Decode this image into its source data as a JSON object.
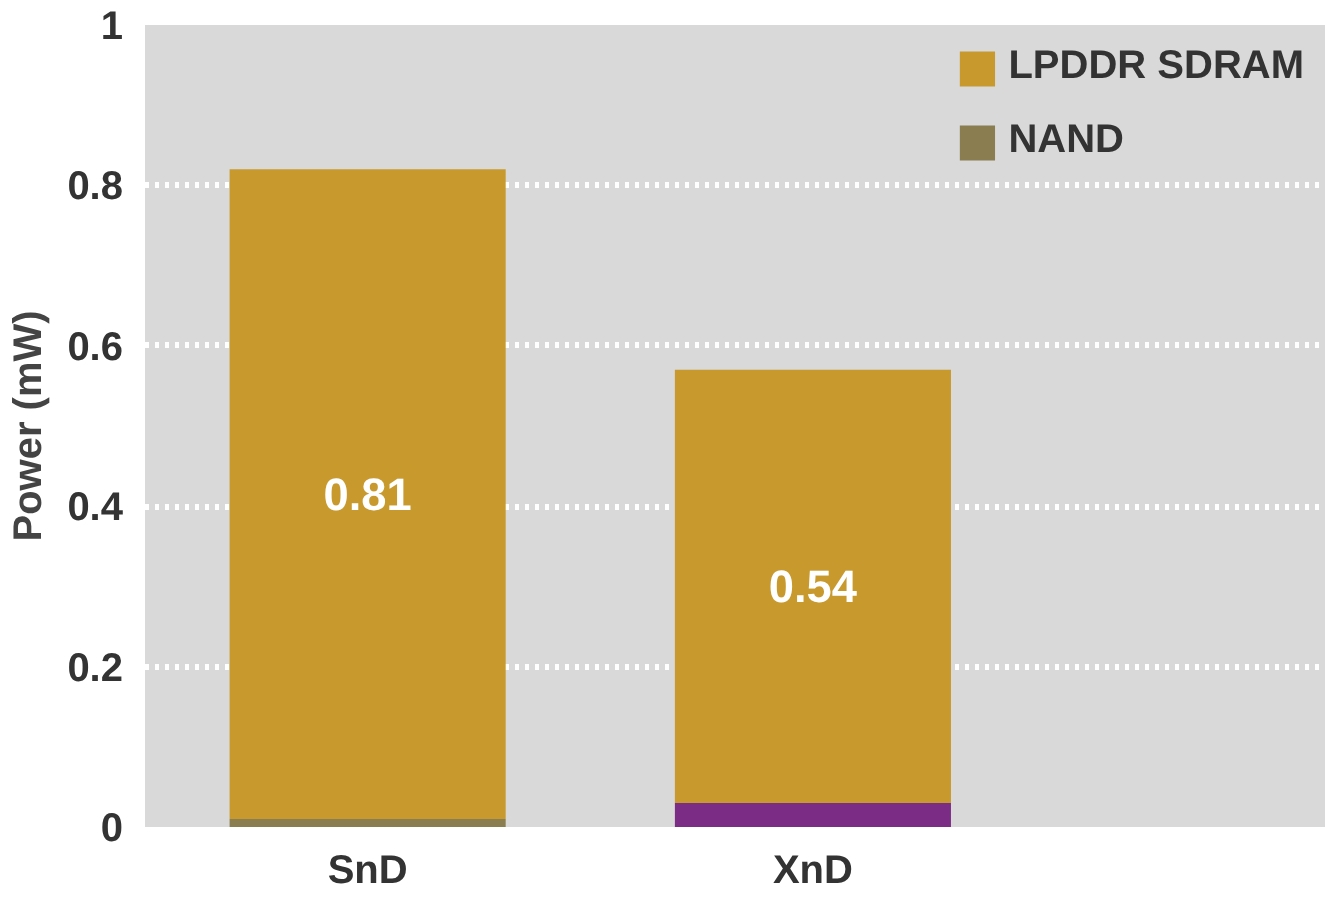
{
  "chart_data": {
    "type": "bar",
    "ylabel": "Power (mW)",
    "categories": [
      "SnD",
      "XnD"
    ],
    "stacked": true,
    "series": [
      {
        "name": "NAND",
        "color": "#8a7d50",
        "values": [
          0.01,
          null
        ]
      },
      {
        "color": "#7b2d86",
        "values": [
          null,
          0.03
        ]
      },
      {
        "name": "LPDDR SDRAM",
        "color": "#c8992c",
        "values": [
          0.81,
          0.54
        ],
        "value_labels": [
          "0.81",
          "0.54"
        ]
      }
    ],
    "ylim": [
      0,
      1
    ],
    "yticks": [
      0,
      0.2,
      0.4,
      0.6,
      0.8,
      1
    ],
    "grid": "y",
    "legend": "top right"
  }
}
